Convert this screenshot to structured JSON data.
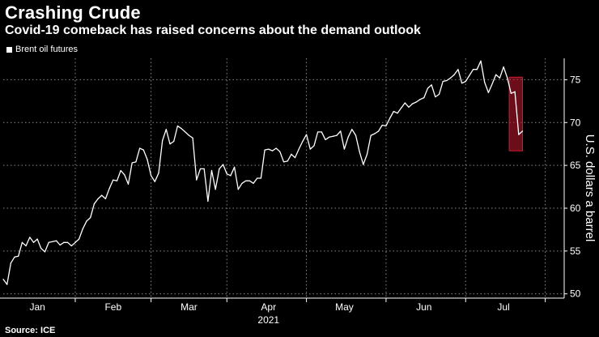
{
  "header": {
    "title": "Crashing Crude",
    "subtitle": "Covid-19 comeback has raised concerns about the demand outlook"
  },
  "footer": {
    "source": "Source: ICE"
  },
  "colors": {
    "background": "#000000",
    "line": "#ffffff",
    "highlight": "#b3172a"
  },
  "chart_data": {
    "type": "line",
    "title": "Crashing Crude",
    "subtitle": "Covid-19 comeback has raised concerns about the demand outlook",
    "legend": [
      "Brent oil futures"
    ],
    "legend_position": "top-left",
    "xlabel": "2021",
    "ylabel": "U.S. dollars a barrel",
    "ylim": [
      49.5,
      77.5
    ],
    "yticks": [
      50,
      55,
      60,
      65,
      70,
      75
    ],
    "xlim": [
      0,
      148
    ],
    "xtick_labels": [
      {
        "label": "Jan",
        "pos": 9
      },
      {
        "label": "Feb",
        "pos": 29
      },
      {
        "label": "Mar",
        "pos": 49
      },
      {
        "label": "Apr",
        "pos": 70
      },
      {
        "label": "May",
        "pos": 90
      },
      {
        "label": "Jun",
        "pos": 111
      },
      {
        "label": "Jul",
        "pos": 132
      }
    ],
    "month_boundaries": [
      19,
      39,
      59,
      80,
      101,
      122,
      143
    ],
    "grid": true,
    "highlight": {
      "x_start": 133.5,
      "x_end": 137,
      "y_start": 66.7,
      "y_end": 75.3
    },
    "series": [
      {
        "name": "Brent oil futures",
        "values": [
          51.7,
          51.1,
          53.6,
          54.3,
          54.4,
          56.0,
          55.6,
          56.6,
          56.0,
          56.4,
          55.3,
          54.9,
          56.0,
          56.1,
          56.2,
          55.7,
          56.0,
          56.0,
          55.6,
          56.0,
          56.4,
          57.6,
          58.5,
          58.9,
          60.5,
          61.1,
          61.5,
          61.1,
          62.3,
          63.3,
          63.2,
          64.4,
          63.9,
          62.8,
          65.3,
          65.4,
          67.0,
          66.8,
          65.7,
          63.8,
          63.1,
          64.1,
          67.9,
          69.2,
          67.5,
          67.8,
          69.6,
          69.3,
          68.9,
          68.5,
          68.2,
          63.3,
          64.6,
          64.6,
          60.8,
          64.4,
          62.2,
          64.6,
          65.1,
          64.0,
          63.8,
          64.8,
          62.2,
          62.9,
          63.2,
          63.2,
          62.9,
          63.5,
          63.5,
          66.8,
          66.9,
          66.7,
          67.0,
          66.6,
          65.4,
          65.5,
          66.3,
          65.9,
          66.9,
          67.8,
          68.6,
          66.9,
          67.3,
          68.9,
          68.9,
          68.0,
          68.3,
          68.4,
          68.5,
          69.0,
          66.9,
          68.3,
          69.2,
          68.5,
          66.6,
          65.1,
          66.3,
          68.5,
          68.7,
          69.0,
          69.7,
          69.6,
          70.5,
          71.3,
          71.1,
          71.7,
          72.3,
          71.8,
          72.2,
          72.4,
          72.7,
          72.9,
          74.0,
          74.4,
          73.0,
          73.3,
          74.8,
          74.9,
          75.2,
          75.6,
          76.2,
          74.6,
          74.8,
          75.5,
          76.2,
          76.2,
          77.2,
          74.7,
          73.5,
          74.5,
          75.6,
          75.2,
          76.5,
          75.2,
          73.4,
          73.6,
          68.6,
          69.0
        ]
      }
    ]
  }
}
